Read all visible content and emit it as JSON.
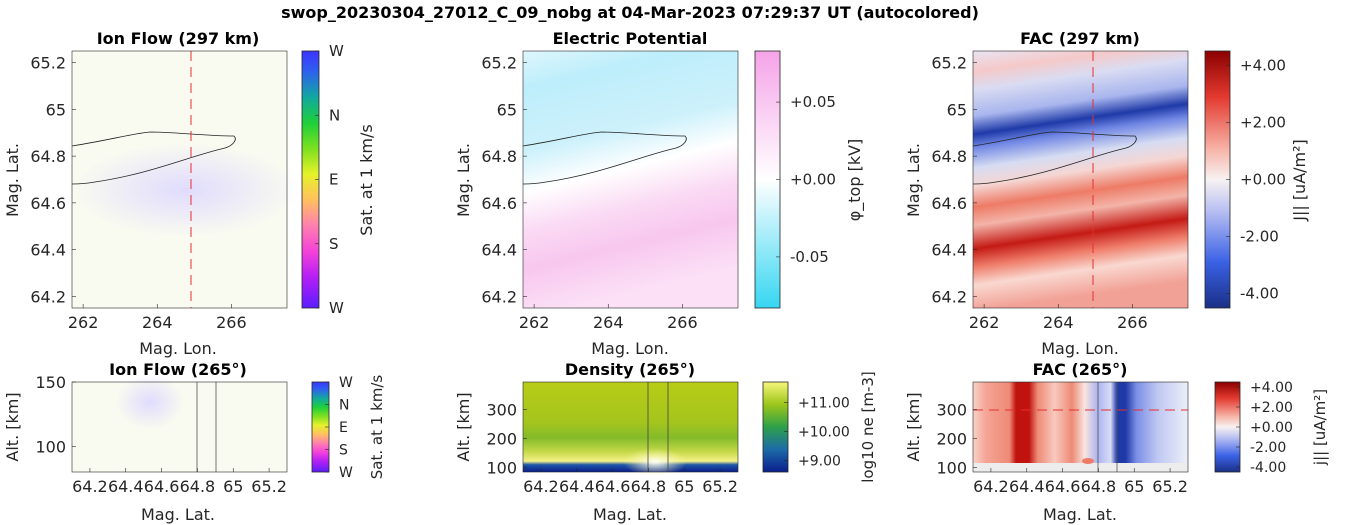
{
  "suptitle": "swop_20230304_27012_C_09_nobg at 04-Mar-2023 07:29:37 UT (autocolored)",
  "colors": {
    "potential_pos": "#f5a3e8",
    "potential_neg": "#36d6f2",
    "fac_pos": "#8b0000",
    "fac_neg": "#1a2f86",
    "density_high": "#f7f57a",
    "density_mid": "#a3c81a",
    "density_low": "#0a1e8c",
    "dashed_line": "#e53030",
    "contour": "#222222"
  },
  "chart_data": [
    {
      "id": "ion-flow-map",
      "type": "heatmap",
      "title": "Ion Flow (297 km)",
      "xlabel": "Mag. Lon.",
      "ylabel": "Mag. Lat.",
      "xlim": [
        261.7,
        267.5
      ],
      "ylim": [
        64.15,
        65.25
      ],
      "xticks": [
        "262",
        "264",
        "266"
      ],
      "yticks": [
        "64.2",
        "64.4",
        "64.6",
        "64.8",
        "65",
        "65.2"
      ],
      "colorbar": {
        "label": "Sat. at 1 km/s",
        "ticks": [
          "W",
          "S",
          "E",
          "N",
          "W"
        ]
      },
      "reference_line_lon": 265,
      "contour_lat_band": [
        64.66,
        64.88
      ]
    },
    {
      "id": "potential-map",
      "type": "heatmap",
      "title": "Electric Potential",
      "xlabel": "Mag. Lon.",
      "ylabel": "Mag. Lat.",
      "xlim": [
        261.7,
        267.5
      ],
      "ylim": [
        64.15,
        65.25
      ],
      "xticks": [
        "262",
        "264",
        "266"
      ],
      "yticks": [
        "64.2",
        "64.4",
        "64.6",
        "64.8",
        "65",
        "65.2"
      ],
      "colorbar": {
        "label": "φ_top [kV]",
        "ticks": [
          "-0.05",
          "+0.00",
          "+0.05"
        ],
        "ticks_values": [
          -0.05,
          0,
          0.05
        ],
        "range": [
          -0.083,
          0.083
        ]
      }
    },
    {
      "id": "fac-map",
      "type": "heatmap",
      "title": "FAC (297 km)",
      "xlabel": "Mag. Lon.",
      "ylabel": "Mag. Lat.",
      "xlim": [
        261.7,
        267.5
      ],
      "ylim": [
        64.15,
        65.25
      ],
      "xticks": [
        "262",
        "264",
        "266"
      ],
      "yticks": [
        "64.2",
        "64.4",
        "64.6",
        "64.8",
        "65",
        "65.2"
      ],
      "colorbar": {
        "label": "J|| [uA/m²]",
        "ticks": [
          "-4.00",
          "-2.00",
          "+0.00",
          "+2.00",
          "+4.00"
        ],
        "ticks_values": [
          -4,
          -2,
          0,
          2,
          4
        ],
        "range": [
          -4.5,
          4.5
        ]
      },
      "reference_line_lon": 265
    },
    {
      "id": "ion-flow-slice",
      "type": "heatmap",
      "title": "Ion Flow (265°)",
      "xlabel": "Mag. Lat.",
      "ylabel": "Alt. [km]",
      "xlim": [
        64.1,
        65.3
      ],
      "ylim": [
        80,
        150
      ],
      "xticks": [
        "64.2",
        "64.4",
        "64.6",
        "64.8",
        "65",
        "65.2"
      ],
      "yticks": [
        "100",
        "150"
      ],
      "colorbar": {
        "label": "Sat. at 1 km/s",
        "ticks": [
          "W",
          "S",
          "E",
          "N",
          "W"
        ]
      }
    },
    {
      "id": "density-slice",
      "type": "heatmap",
      "title": "Density (265°)",
      "xlabel": "Mag. Lat.",
      "ylabel": "Alt. [km]",
      "xlim": [
        64.1,
        65.3
      ],
      "ylim": [
        85,
        395
      ],
      "xticks": [
        "64.2",
        "64.4",
        "64.6",
        "64.8",
        "65",
        "65.2"
      ],
      "yticks": [
        "100",
        "200",
        "300"
      ],
      "colorbar": {
        "label": "log10 ne [m-3]",
        "ticks": [
          "+9.00",
          "+10.00",
          "+11.00"
        ],
        "ticks_values": [
          9,
          10,
          11
        ],
        "range": [
          8.6,
          11.7
        ]
      }
    },
    {
      "id": "fac-slice",
      "type": "heatmap",
      "title": "FAC (265°)",
      "xlabel": "Mag. Lat.",
      "ylabel": "Alt. [km]",
      "xlim": [
        64.1,
        65.3
      ],
      "ylim": [
        85,
        395
      ],
      "xticks": [
        "64.2",
        "64.4",
        "64.6",
        "64.8",
        "65",
        "65.2"
      ],
      "yticks": [
        "100",
        "200",
        "300"
      ],
      "colorbar": {
        "label": "j|| [uA/m²]",
        "ticks": [
          "-4.00",
          "-2.00",
          "+0.00",
          "+2.00",
          "+4.00"
        ],
        "ticks_values": [
          -4,
          -2,
          0,
          2,
          4
        ],
        "range": [
          -4.5,
          4.5
        ]
      },
      "reference_line_alt": 300
    }
  ]
}
